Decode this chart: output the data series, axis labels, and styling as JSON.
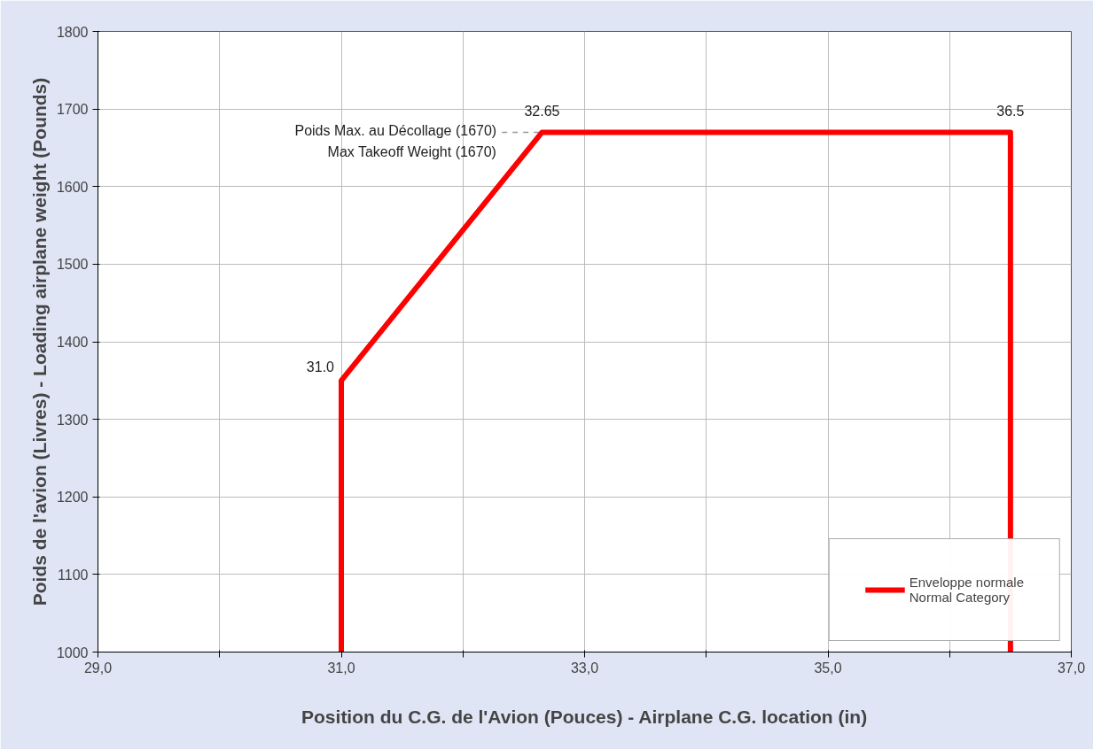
{
  "chart_data": {
    "type": "line",
    "xlabel": "Position du C.G. de l'Avion (Pouces) - Airplane C.G. location (in)",
    "ylabel": "Poids de l'avion (Livres) - Loading airplane weight (Pounds)",
    "xlim": [
      29,
      37
    ],
    "ylim": [
      1000,
      1800
    ],
    "xticks": [
      {
        "value": 29,
        "label": "29,0"
      },
      {
        "value": 30,
        "label": null
      },
      {
        "value": 31,
        "label": "31,0"
      },
      {
        "value": 32,
        "label": null
      },
      {
        "value": 33,
        "label": "33,0"
      },
      {
        "value": 34,
        "label": null
      },
      {
        "value": 35,
        "label": "35,0"
      },
      {
        "value": 36,
        "label": null
      },
      {
        "value": 37,
        "label": "37,0"
      }
    ],
    "yticks": [
      1000,
      1100,
      1200,
      1300,
      1400,
      1500,
      1600,
      1700,
      1800
    ],
    "series": [
      {
        "name": "Enveloppe normale\nNormal Category",
        "color": "#ff0000",
        "x": [
          31,
          31,
          32.65,
          36.5,
          36.5
        ],
        "values": [
          1000,
          1350,
          1670,
          1670,
          1000
        ]
      }
    ],
    "annotations": [
      {
        "text": "31.0",
        "x": 31,
        "y": 1350
      },
      {
        "text": "32.65",
        "x": 32.65,
        "y": 1670
      },
      {
        "text": "36.5",
        "x": 36.5,
        "y": 1670
      }
    ],
    "ref_lines": [
      {
        "axis": "y",
        "value": 1670,
        "label": "Poids Max. au Décollage (1670)\nMax Takeoff Weight (1670)",
        "color": "#999999",
        "line_style": "dashed"
      }
    ],
    "grid": true,
    "legend": "bottom right",
    "line_style": "solid",
    "marker": "none"
  }
}
